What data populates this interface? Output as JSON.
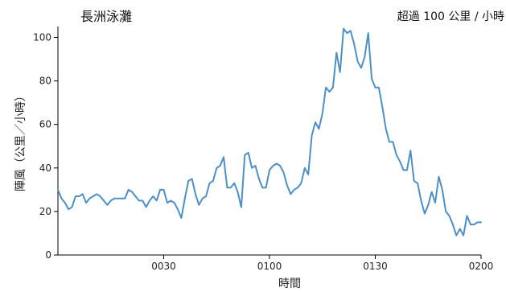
{
  "chart_data": {
    "type": "line",
    "title": "長洲泳灘",
    "subtitle": "超過 100 公里 / 小時",
    "xlabel": "時間",
    "ylabel": "陣風（公里／小時）",
    "xlim": [
      0,
      120
    ],
    "ylim": [
      0,
      105
    ],
    "x_ticks": [
      {
        "value": 30,
        "label": "0030"
      },
      {
        "value": 60,
        "label": "0100"
      },
      {
        "value": 90,
        "label": "0130"
      },
      {
        "value": 120,
        "label": "0200"
      }
    ],
    "y_ticks": [
      0,
      20,
      40,
      60,
      80,
      100
    ],
    "grid": false,
    "series": [
      {
        "color": "#4e8fc4",
        "x": [
          0,
          1,
          2,
          3,
          4,
          5,
          6,
          7,
          8,
          9,
          10,
          11,
          12,
          13,
          14,
          15,
          16,
          17,
          18,
          19,
          20,
          21,
          22,
          23,
          24,
          25,
          26,
          27,
          28,
          29,
          30,
          31,
          32,
          33,
          34,
          35,
          36,
          37,
          38,
          39,
          40,
          41,
          42,
          43,
          44,
          45,
          46,
          47,
          48,
          49,
          50,
          51,
          52,
          53,
          54,
          55,
          56,
          57,
          58,
          59,
          60,
          61,
          62,
          63,
          64,
          65,
          66,
          67,
          68,
          69,
          70,
          71,
          72,
          73,
          74,
          75,
          76,
          77,
          78,
          79,
          80,
          81,
          82,
          83,
          84,
          85,
          86,
          87,
          88,
          89,
          90,
          91,
          92,
          93,
          94,
          95,
          96,
          97,
          98,
          99,
          100,
          101,
          102,
          103,
          104,
          105,
          106,
          107,
          108,
          109,
          110,
          111,
          112,
          113,
          114,
          115,
          116,
          117,
          118,
          119,
          120
        ],
        "values": [
          30,
          26,
          24,
          21,
          22,
          27,
          27,
          28,
          24,
          26,
          27,
          28,
          27,
          25,
          23,
          25,
          26,
          26,
          26,
          26,
          30,
          29,
          27,
          25,
          25,
          22,
          25,
          27,
          25,
          30,
          30,
          24,
          25,
          24,
          21,
          17,
          26,
          34,
          35,
          28,
          23,
          26,
          27,
          33,
          34,
          40,
          41,
          45,
          31,
          31,
          33,
          29,
          22,
          46,
          47,
          40,
          41,
          35,
          31,
          31,
          39,
          41,
          42,
          41,
          38,
          32,
          28,
          30,
          31,
          33,
          40,
          37,
          55,
          61,
          58,
          65,
          77,
          75,
          77,
          93,
          84,
          104,
          102,
          103,
          97,
          89,
          86,
          91,
          102,
          81,
          77,
          77,
          68,
          58,
          52,
          52,
          46,
          43,
          39,
          39,
          48,
          34,
          33,
          25,
          19,
          23,
          29,
          24,
          36,
          30,
          20,
          18,
          14,
          9,
          12,
          9,
          18,
          14,
          14,
          15,
          15
        ]
      }
    ]
  }
}
